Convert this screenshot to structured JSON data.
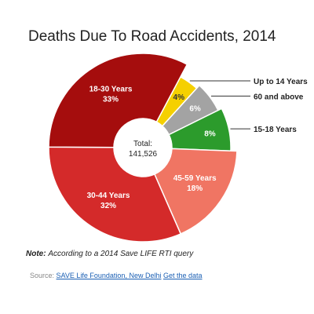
{
  "page": {
    "title": "Deaths Due To Road Accidents, 2014",
    "note_label": "Note:",
    "note_text": "According to a 2014 Save LIFE RTI query",
    "source_label": "Source:",
    "source_link": "SAVE Life Foundation, New Delhi",
    "data_link": "Get the data"
  },
  "chart_data": {
    "type": "pie",
    "title": "Deaths Due To Road Accidents, 2014",
    "center_label": "Total:",
    "center_value": "141,526",
    "slices": [
      {
        "label": "Up to 14 Years",
        "display": "4%",
        "value": 4,
        "color": "#f5d000",
        "label_inside": false,
        "text_color": "#333333"
      },
      {
        "label": "60 and above",
        "display": "6%",
        "value": 6,
        "color": "#a3a3a3",
        "label_inside": false,
        "text_color": "#ffffff"
      },
      {
        "label": "15-18 Years",
        "display": "8%",
        "value": 8,
        "color": "#2c9b2c",
        "label_inside": false,
        "text_color": "#ffffff"
      },
      {
        "label": "45-59 Years",
        "display": "18%",
        "value": 18,
        "color": "#f07563",
        "label_inside": true,
        "text_color": "#ffffff"
      },
      {
        "label": "30-44 Years",
        "display": "32%",
        "value": 32,
        "color": "#d42a2a",
        "label_inside": true,
        "text_color": "#ffffff"
      },
      {
        "label": "18-30 Years",
        "display": "33%",
        "value": 33,
        "color": "#a50d0d",
        "label_inside": true,
        "text_color": "#ffffff"
      }
    ]
  }
}
